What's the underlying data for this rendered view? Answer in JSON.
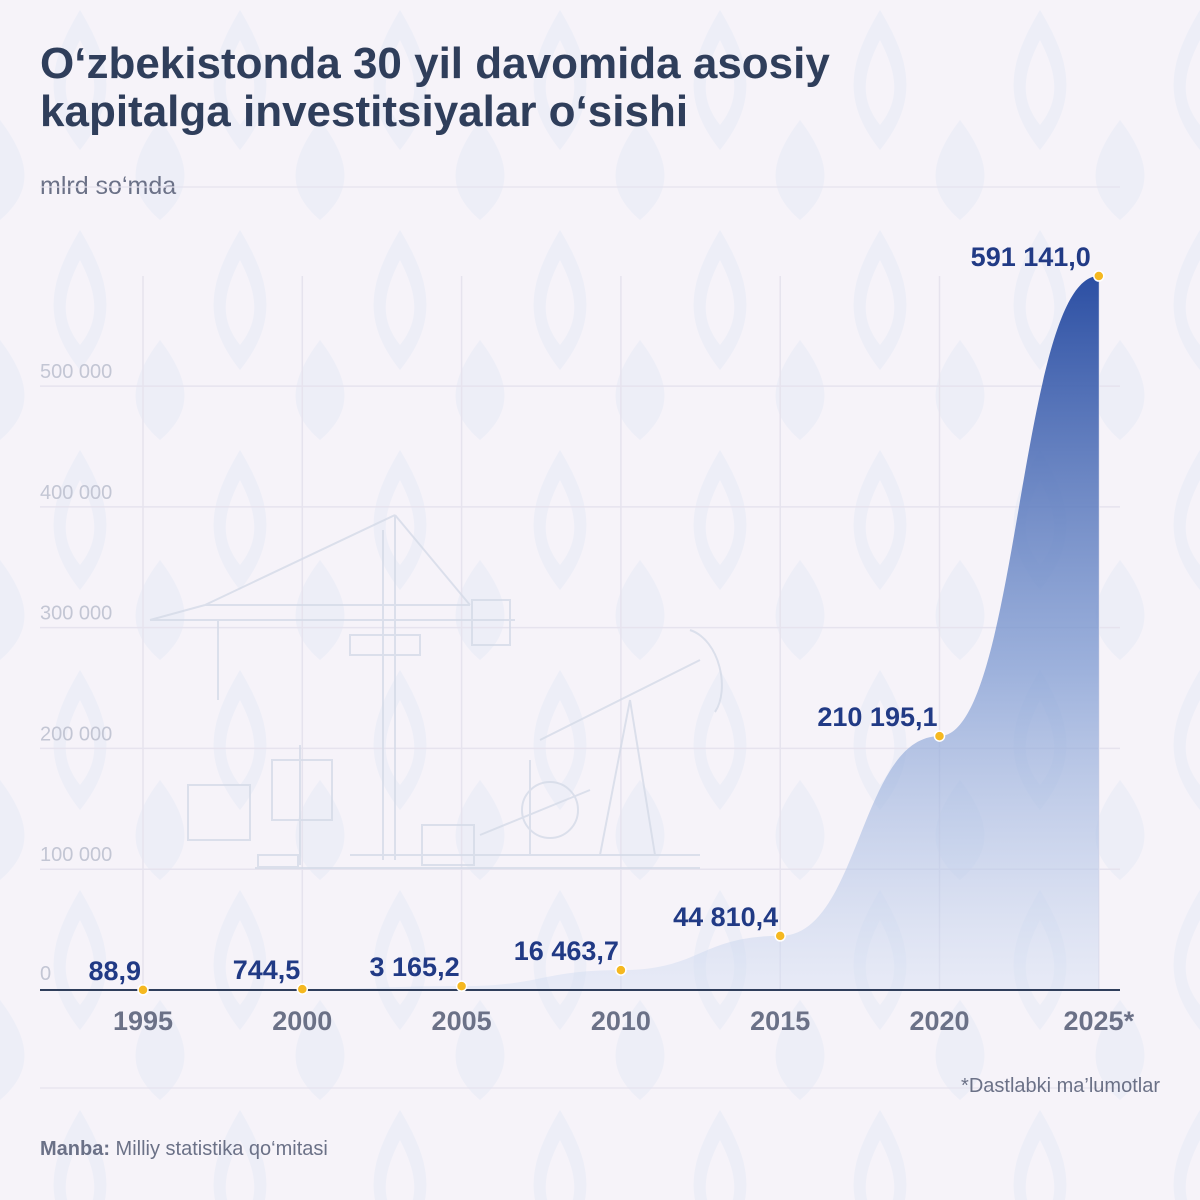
{
  "title_line1": "O‘zbekistonda 30 yil davomida asosiy",
  "title_line2": "kapitalga investitsiyalar o‘sishi",
  "unit": "mlrd so‘mda",
  "footnote": "*Dastlabki ma’lumotlar",
  "source_label": "Manba:",
  "source_text": " Milliy statistika qo‘mitasi",
  "colors": {
    "title": "#2f3e5b",
    "area_top": "#2c4fa3",
    "area_bottom": "#d6e0f3",
    "point": "#f5b820",
    "label": "#213a85",
    "axis_tick": "#c3c6d4",
    "year_label": "#6b7187"
  },
  "chart_data": {
    "type": "area",
    "x": [
      "1995",
      "2000",
      "2005",
      "2010",
      "2015",
      "2020",
      "2025*"
    ],
    "values": [
      88.9,
      744.5,
      3165.2,
      16463.7,
      44810.4,
      210195.1,
      591141.0
    ],
    "value_labels": [
      "88,9",
      "744,5",
      "3 165,2",
      "16 463,7",
      "44 810,4",
      "210 195,1",
      "591 141,0"
    ],
    "y_ticks": [
      0,
      100000,
      200000,
      300000,
      400000,
      500000
    ],
    "y_tick_labels": [
      "0",
      "100 000",
      "200 000",
      "300 000",
      "400 000",
      "500 000"
    ],
    "ylim": [
      0,
      591141
    ],
    "grid": true
  }
}
